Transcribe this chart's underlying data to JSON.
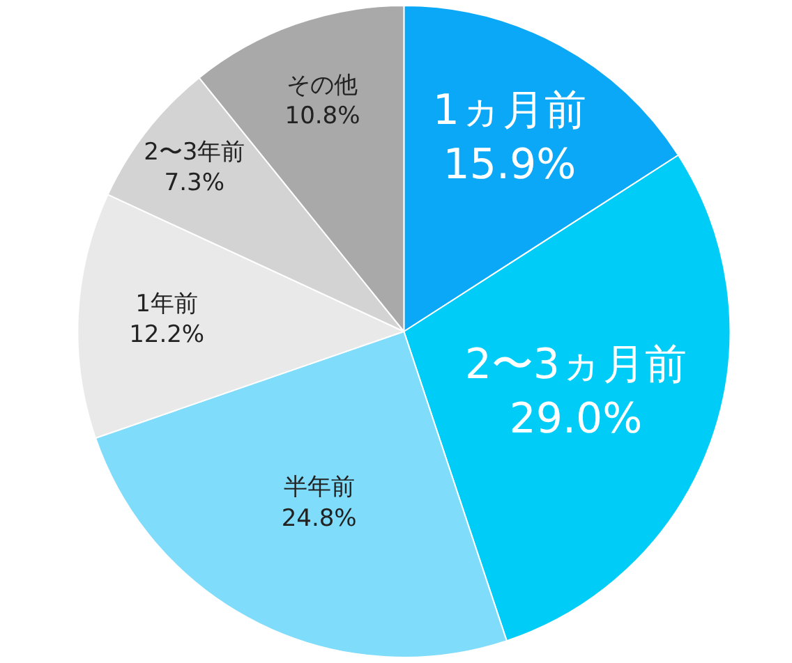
{
  "chart_data": {
    "type": "pie",
    "categories": [
      "1ヵ月前",
      "2〜3ヵ月前",
      "半年前",
      "1年前",
      "2〜3年前",
      "その他"
    ],
    "values": [
      15.9,
      29.0,
      24.8,
      12.2,
      7.3,
      10.8
    ],
    "colors": [
      "#0aa8f7",
      "#00cdf7",
      "#7fdcfa",
      "#e9e9e9",
      "#d3d3d3",
      "#a9a9a9"
    ],
    "value_labels": [
      "15.9%",
      "29.0%",
      "24.8%",
      "12.2%",
      "7.3%",
      "10.8%"
    ],
    "legend": false
  }
}
